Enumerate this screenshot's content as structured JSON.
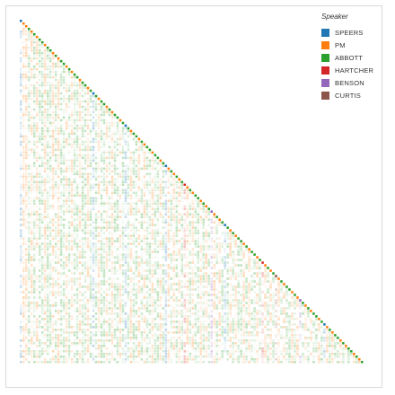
{
  "chart_data": {
    "type": "heatmap",
    "layout": "lower-triangular",
    "n_turns": 128,
    "opacity_encoding": "cells on the diagonal are fully saturated; off-diagonal cells are pale tints of the speaker colour",
    "legend": {
      "title": "Speaker",
      "position": "top-right",
      "entries": [
        {
          "name": "SPEERS",
          "color": "#1f77b4"
        },
        {
          "name": "PM",
          "color": "#ff7f0e"
        },
        {
          "name": "ABBOTT",
          "color": "#2ca02c"
        },
        {
          "name": "HARTCHER",
          "color": "#d62728"
        },
        {
          "name": "BENSON",
          "color": "#9467bd"
        },
        {
          "name": "CURTIS",
          "color": "#8c564b"
        }
      ]
    },
    "diagonal_speakers": [
      "SPEERS",
      "PM",
      "PM",
      "ABBOTT",
      "PM",
      "ABBOTT",
      "PM",
      "ABBOTT",
      "ABBOTT",
      "PM",
      "ABBOTT",
      "ABBOTT",
      "PM",
      "ABBOTT",
      "PM",
      "ABBOTT",
      "ABBOTT",
      "PM",
      "ABBOTT",
      "PM",
      "ABBOTT",
      "ABBOTT",
      "PM",
      "ABBOTT",
      "ABBOTT",
      "PM",
      "ABBOTT",
      "SPEERS",
      "ABBOTT",
      "PM",
      "ABBOTT",
      "ABBOTT",
      "PM",
      "ABBOTT",
      "PM",
      "ABBOTT",
      "ABBOTT",
      "PM",
      "ABBOTT",
      "SPEERS",
      "ABBOTT",
      "PM",
      "ABBOTT",
      "ABBOTT",
      "PM",
      "ABBOTT",
      "PM",
      "ABBOTT",
      "ABBOTT",
      "PM",
      "ABBOTT",
      "ABBOTT",
      "PM",
      "ABBOTT",
      "SPEERS",
      "PM",
      "ABBOTT",
      "PM",
      "ABBOTT",
      "PM",
      "ABBOTT",
      "HARTCHER",
      "PM",
      "ABBOTT",
      "PM",
      "ABBOTT",
      "ABBOTT",
      "PM",
      "ABBOTT",
      "PM",
      "ABBOTT",
      "BENSON",
      "PM",
      "ABBOTT",
      "PM",
      "ABBOTT",
      "SPEERS",
      "ABBOTT",
      "PM",
      "ABBOTT",
      "PM",
      "ABBOTT",
      "ABBOTT",
      "PM",
      "ABBOTT",
      "PM",
      "ABBOTT",
      "ABBOTT",
      "PM",
      "ABBOTT",
      "HARTCHER",
      "PM",
      "ABBOTT",
      "PM",
      "ABBOTT",
      "CURTIS",
      "PM",
      "ABBOTT",
      "PM",
      "ABBOTT",
      "ABBOTT",
      "PM",
      "ABBOTT",
      "PM",
      "BENSON",
      "ABBOTT",
      "PM",
      "ABBOTT",
      "PM",
      "ABBOTT",
      "ABBOTT",
      "PM",
      "ABBOTT",
      "SPEERS",
      "PM",
      "ABBOTT",
      "PM",
      "ABBOTT",
      "ABBOTT",
      "PM",
      "ABBOTT",
      "PM",
      "ABBOTT",
      "ABBOTT",
      "PM",
      "ABBOTT",
      "PM",
      "ABBOTT"
    ]
  }
}
